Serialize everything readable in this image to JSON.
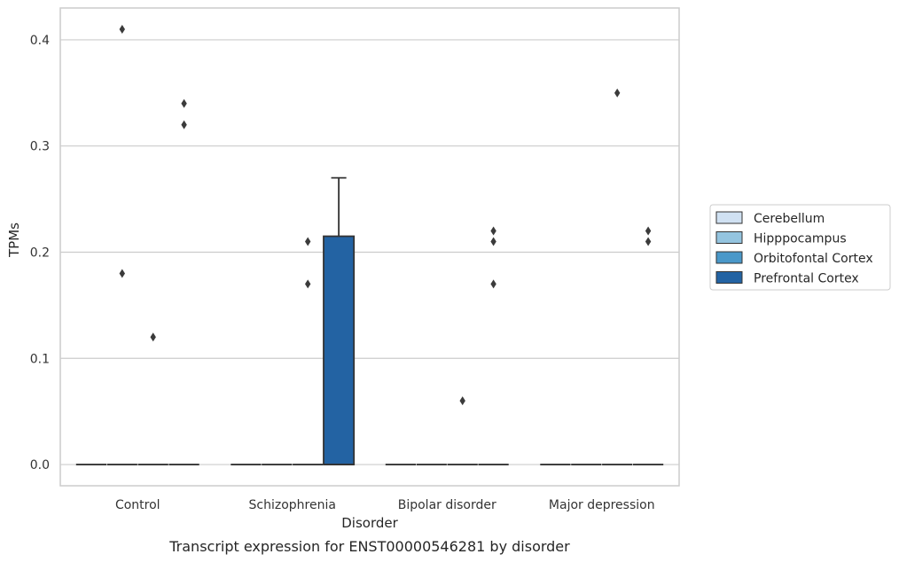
{
  "chart_data": {
    "type": "box",
    "caption": "Transcript expression for ENST00000546281 by disorder",
    "xlabel": "Disorder",
    "ylabel": "TPMs",
    "ylim": [
      -0.02,
      0.43
    ],
    "yticks": [
      "0.0",
      "0.1",
      "0.2",
      "0.3",
      "0.4"
    ],
    "ytick_values": [
      0.0,
      0.1,
      0.2,
      0.3,
      0.4
    ],
    "categories": [
      "Control",
      "Schizophrenia",
      "Bipolar disorder",
      "Major depression"
    ],
    "grid": "horizontal",
    "legend_position": "right",
    "series": [
      {
        "name": "Cerebellum",
        "color": "#d0e1f2",
        "boxes": [
          {
            "q1": 0,
            "median": 0,
            "q3": 0,
            "whisker_low": 0,
            "whisker_high": 0,
            "outliers": []
          },
          {
            "q1": 0,
            "median": 0,
            "q3": 0,
            "whisker_low": 0,
            "whisker_high": 0,
            "outliers": []
          },
          {
            "q1": 0,
            "median": 0,
            "q3": 0,
            "whisker_low": 0,
            "whisker_high": 0,
            "outliers": []
          },
          {
            "q1": 0,
            "median": 0,
            "q3": 0,
            "whisker_low": 0,
            "whisker_high": 0,
            "outliers": []
          }
        ]
      },
      {
        "name": "Hipppocampus",
        "color": "#94c4df",
        "boxes": [
          {
            "q1": 0,
            "median": 0,
            "q3": 0,
            "whisker_low": 0,
            "whisker_high": 0,
            "outliers": [
              0.18,
              0.41
            ]
          },
          {
            "q1": 0,
            "median": 0,
            "q3": 0,
            "whisker_low": 0,
            "whisker_high": 0,
            "outliers": []
          },
          {
            "q1": 0,
            "median": 0,
            "q3": 0,
            "whisker_low": 0,
            "whisker_high": 0,
            "outliers": []
          },
          {
            "q1": 0,
            "median": 0,
            "q3": 0,
            "whisker_low": 0,
            "whisker_high": 0,
            "outliers": []
          }
        ]
      },
      {
        "name": "Orbitofontal Cortex",
        "color": "#4a98c9",
        "boxes": [
          {
            "q1": 0,
            "median": 0,
            "q3": 0,
            "whisker_low": 0,
            "whisker_high": 0,
            "outliers": [
              0.12
            ]
          },
          {
            "q1": 0,
            "median": 0,
            "q3": 0,
            "whisker_low": 0,
            "whisker_high": 0,
            "outliers": [
              0.17,
              0.21
            ]
          },
          {
            "q1": 0,
            "median": 0,
            "q3": 0,
            "whisker_low": 0,
            "whisker_high": 0,
            "outliers": [
              0.06
            ]
          },
          {
            "q1": 0,
            "median": 0,
            "q3": 0,
            "whisker_low": 0,
            "whisker_high": 0,
            "outliers": [
              0.35
            ]
          }
        ]
      },
      {
        "name": "Prefrontal Cortex",
        "color": "#2363a3",
        "boxes": [
          {
            "q1": 0,
            "median": 0,
            "q3": 0,
            "whisker_low": 0,
            "whisker_high": 0,
            "outliers": [
              0.32,
              0.34
            ]
          },
          {
            "q1": 0,
            "median": 0,
            "q3": 0.215,
            "whisker_low": 0,
            "whisker_high": 0.27,
            "outliers": []
          },
          {
            "q1": 0,
            "median": 0,
            "q3": 0,
            "whisker_low": 0,
            "whisker_high": 0,
            "outliers": [
              0.17,
              0.21,
              0.22
            ]
          },
          {
            "q1": 0,
            "median": 0,
            "q3": 0,
            "whisker_low": 0,
            "whisker_high": 0,
            "outliers": [
              0.21,
              0.22
            ]
          }
        ]
      }
    ]
  }
}
